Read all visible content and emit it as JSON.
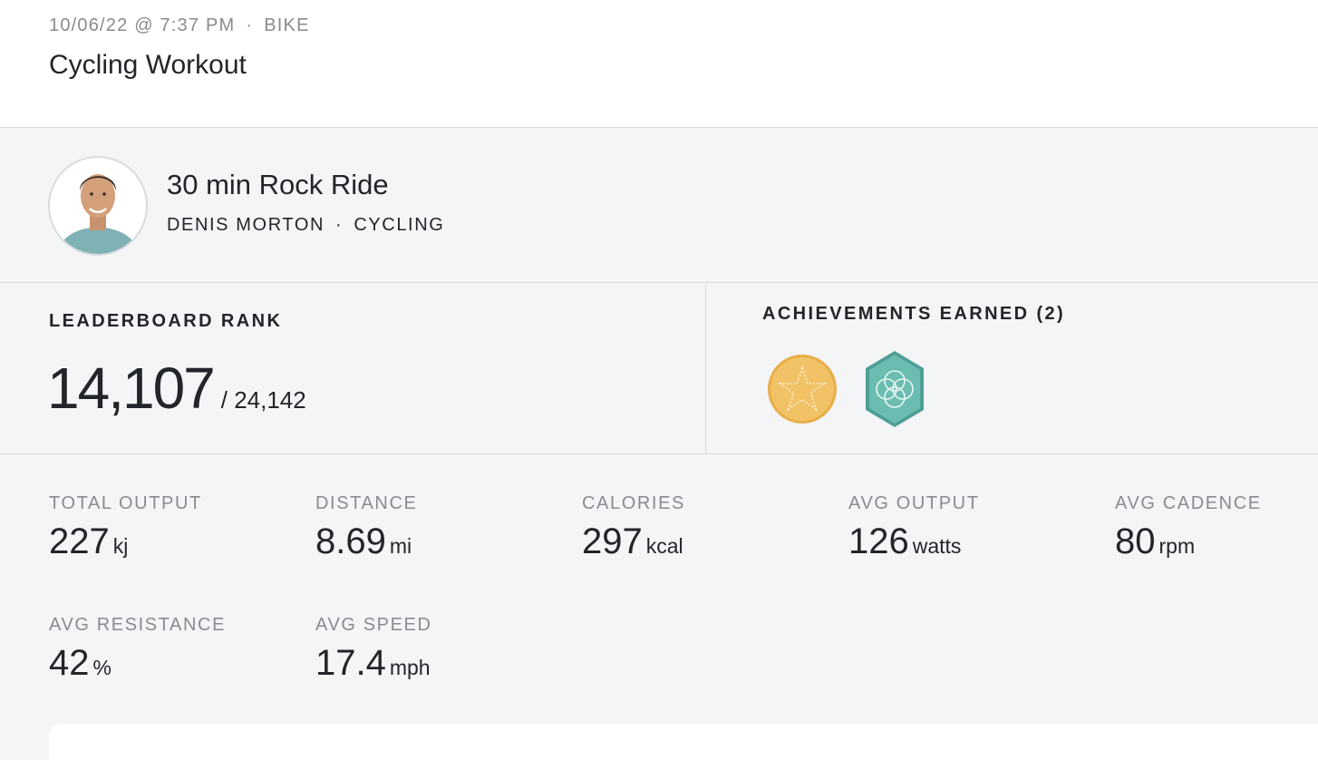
{
  "header": {
    "date": "10/06/22 @ 7:37 PM",
    "separator": "·",
    "type": "BIKE",
    "title": "Cycling Workout"
  },
  "class": {
    "name": "30 min Rock Ride",
    "instructor": "DENIS MORTON",
    "separator": "·",
    "discipline": "CYCLING"
  },
  "leaderboard": {
    "label": "LEADERBOARD RANK",
    "rank": "14,107",
    "total": "/ 24,142"
  },
  "achievements": {
    "label": "ACHIEVEMENTS EARNED (2)",
    "badges": [
      {
        "icon": "gold-star-badge-icon",
        "color": "#f0bf5c"
      },
      {
        "icon": "teal-circles-badge-icon",
        "color": "#6bbcb1"
      }
    ]
  },
  "stats": [
    {
      "label": "TOTAL OUTPUT",
      "value": "227",
      "unit": "kj"
    },
    {
      "label": "DISTANCE",
      "value": "8.69",
      "unit": "mi"
    },
    {
      "label": "CALORIES",
      "value": "297",
      "unit": "kcal"
    },
    {
      "label": "AVG OUTPUT",
      "value": "126",
      "unit": "watts"
    },
    {
      "label": "AVG CADENCE",
      "value": "80",
      "unit": "rpm"
    },
    {
      "label": "AVG RESISTANCE",
      "value": "42",
      "unit": "%"
    },
    {
      "label": "AVG SPEED",
      "value": "17.4",
      "unit": "mph"
    }
  ]
}
